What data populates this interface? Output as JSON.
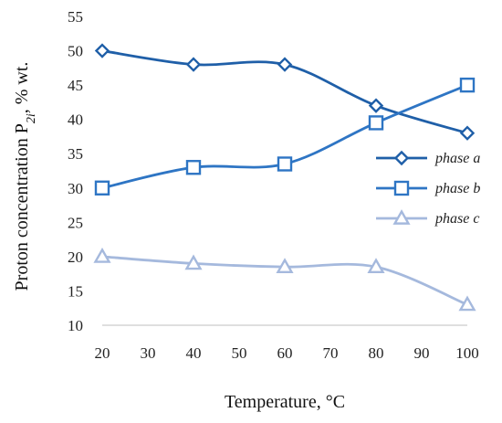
{
  "chart_data": {
    "type": "line",
    "smooth": true,
    "xlabel": "Temperature, °C",
    "ylabel": "Proton concentration P",
    "ylabel_subscript": "2i",
    "ylabel_unit": ", % wt.",
    "xlim": [
      20,
      100
    ],
    "ylim": [
      10,
      55
    ],
    "x_ticks": [
      "20",
      "30",
      "40",
      "50",
      "60",
      "70",
      "80",
      "90",
      "100"
    ],
    "y_ticks": [
      "10",
      "15",
      "20",
      "25",
      "30",
      "35",
      "40",
      "45",
      "50",
      "55"
    ],
    "grid": false,
    "legend_position": "right",
    "x": [
      20,
      40,
      60,
      80,
      100
    ],
    "series": [
      {
        "name": "phase a",
        "values": [
          50,
          48,
          48,
          42,
          38
        ],
        "color": "#1f5fa8",
        "marker": "diamond"
      },
      {
        "name": "phase b",
        "values": [
          30,
          33,
          33.5,
          39.5,
          45
        ],
        "color": "#2e75c4",
        "marker": "square"
      },
      {
        "name": "phase c",
        "values": [
          20,
          19,
          18.5,
          18.5,
          13
        ],
        "color": "#a5b9dd",
        "marker": "triangle"
      }
    ]
  }
}
